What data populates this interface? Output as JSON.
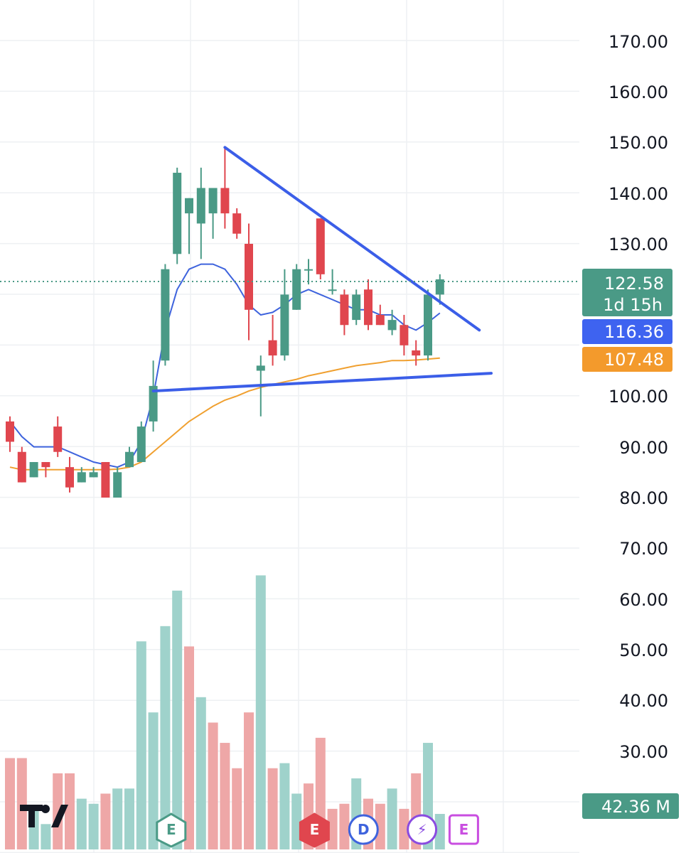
{
  "chart_data": {
    "type": "candlestick",
    "title": "",
    "xlabel": "",
    "ylabel": "",
    "price_axis": {
      "min": 70,
      "max": 175,
      "ticks": [
        "170.00",
        "160.00",
        "150.00",
        "140.00",
        "130.00",
        "100.00",
        "90.00",
        "80.00",
        "70.00"
      ]
    },
    "volume_axis": {
      "min": 0,
      "max": 100,
      "ticks": [
        "60.00",
        "50.00",
        "40.00",
        "30.00"
      ]
    },
    "grid": true,
    "colors": {
      "up": "#4a9a86",
      "down": "#e0464e",
      "up_volume": "#9fd2cb",
      "down_volume": "#eea7a7",
      "ma_fast": "#3e63dd",
      "ma_slow": "#f0a030",
      "trendline": "#3b5ee8",
      "last_price_tag": "#4a9a86",
      "ma_fast_tag": "#3e63f0",
      "ma_slow_tag": "#f39a2c",
      "volume_tag": "#4a9a86"
    },
    "candles": [
      {
        "o": 95,
        "h": 96,
        "l": 89,
        "c": 91
      },
      {
        "o": 89,
        "h": 90,
        "l": 83,
        "c": 83
      },
      {
        "o": 84,
        "h": 87,
        "l": 84,
        "c": 87
      },
      {
        "o": 87,
        "h": 87,
        "l": 84,
        "c": 86
      },
      {
        "o": 94,
        "h": 96,
        "l": 88,
        "c": 89
      },
      {
        "o": 86,
        "h": 88,
        "l": 81,
        "c": 82
      },
      {
        "o": 83,
        "h": 86,
        "l": 83,
        "c": 85
      },
      {
        "o": 84,
        "h": 86,
        "l": 84,
        "c": 85
      },
      {
        "o": 87,
        "h": 87,
        "l": 80,
        "c": 80
      },
      {
        "o": 80,
        "h": 86,
        "l": 80,
        "c": 85
      },
      {
        "o": 86,
        "h": 90,
        "l": 86,
        "c": 89
      },
      {
        "o": 87,
        "h": 95,
        "l": 87,
        "c": 94
      },
      {
        "o": 95,
        "h": 107,
        "l": 93,
        "c": 102
      },
      {
        "o": 107,
        "h": 126,
        "l": 106,
        "c": 125
      },
      {
        "o": 128,
        "h": 145,
        "l": 126,
        "c": 144
      },
      {
        "o": 136,
        "h": 139,
        "l": 128,
        "c": 139
      },
      {
        "o": 134,
        "h": 145,
        "l": 127,
        "c": 141
      },
      {
        "o": 136,
        "h": 141,
        "l": 131,
        "c": 141
      },
      {
        "o": 141,
        "h": 149,
        "l": 133,
        "c": 136
      },
      {
        "o": 136,
        "h": 137,
        "l": 131,
        "c": 132
      },
      {
        "o": 130,
        "h": 134,
        "l": 111,
        "c": 117
      },
      {
        "o": 105,
        "h": 108,
        "l": 96,
        "c": 106
      },
      {
        "o": 111,
        "h": 116,
        "l": 106,
        "c": 108
      },
      {
        "o": 108,
        "h": 125,
        "l": 107,
        "c": 120
      },
      {
        "o": 117,
        "h": 126,
        "l": 117,
        "c": 125
      },
      {
        "o": 125,
        "h": 127,
        "l": 122,
        "c": 125
      },
      {
        "o": 135,
        "h": 135,
        "l": 123,
        "c": 124
      },
      {
        "o": 121,
        "h": 125,
        "l": 120,
        "c": 121
      },
      {
        "o": 120,
        "h": 121,
        "l": 112,
        "c": 114
      },
      {
        "o": 115,
        "h": 121,
        "l": 114,
        "c": 120
      },
      {
        "o": 121,
        "h": 123,
        "l": 113,
        "c": 114
      },
      {
        "o": 116,
        "h": 118,
        "l": 114,
        "c": 114
      },
      {
        "o": 113,
        "h": 117,
        "l": 112,
        "c": 115
      },
      {
        "o": 114,
        "h": 116,
        "l": 108,
        "c": 110
      },
      {
        "o": 109,
        "h": 111,
        "l": 106,
        "c": 108
      },
      {
        "o": 108,
        "h": 121,
        "l": 107,
        "c": 120
      },
      {
        "o": 120,
        "h": 124,
        "l": 118,
        "c": 123
      }
    ],
    "volume": [
      {
        "v": 18,
        "up": false
      },
      {
        "v": 18,
        "up": false
      },
      {
        "v": 8,
        "up": true
      },
      {
        "v": 5,
        "up": true
      },
      {
        "v": 15,
        "up": false
      },
      {
        "v": 15,
        "up": false
      },
      {
        "v": 10,
        "up": true
      },
      {
        "v": 9,
        "up": true
      },
      {
        "v": 11,
        "up": false
      },
      {
        "v": 12,
        "up": true
      },
      {
        "v": 12,
        "up": true
      },
      {
        "v": 41,
        "up": true
      },
      {
        "v": 27,
        "up": true
      },
      {
        "v": 44,
        "up": true
      },
      {
        "v": 51,
        "up": true
      },
      {
        "v": 40,
        "up": false
      },
      {
        "v": 30,
        "up": true
      },
      {
        "v": 25,
        "up": false
      },
      {
        "v": 21,
        "up": false
      },
      {
        "v": 16,
        "up": false
      },
      {
        "v": 27,
        "up": false
      },
      {
        "v": 54,
        "up": true
      },
      {
        "v": 16,
        "up": false
      },
      {
        "v": 17,
        "up": true
      },
      {
        "v": 11,
        "up": true
      },
      {
        "v": 13,
        "up": false
      },
      {
        "v": 22,
        "up": false
      },
      {
        "v": 8,
        "up": false
      },
      {
        "v": 9,
        "up": false
      },
      {
        "v": 14,
        "up": true
      },
      {
        "v": 10,
        "up": false
      },
      {
        "v": 9,
        "up": false
      },
      {
        "v": 12,
        "up": true
      },
      {
        "v": 8,
        "up": false
      },
      {
        "v": 15,
        "up": false
      },
      {
        "v": 21,
        "up": true
      },
      {
        "v": 7,
        "up": true
      }
    ],
    "ma_fast": [
      95,
      92,
      90,
      90,
      90,
      89,
      88,
      87,
      86.5,
      86,
      87,
      91,
      100,
      113,
      121,
      125,
      126,
      126,
      125,
      122,
      118,
      116,
      116.5,
      118,
      120,
      121,
      120,
      119,
      118,
      117,
      117,
      116,
      116,
      114,
      113,
      114.5,
      116.36
    ],
    "ma_slow": [
      86,
      85.5,
      85.5,
      85.5,
      85.5,
      85.5,
      85.5,
      85.5,
      85.5,
      85.6,
      86,
      87,
      89,
      91,
      93,
      95,
      96.5,
      98,
      99.2,
      100,
      101,
      101.7,
      102.3,
      102.8,
      103.3,
      104,
      104.5,
      105,
      105.5,
      106,
      106.3,
      106.6,
      107,
      107,
      107.1,
      107.3,
      107.48
    ],
    "trendlines": [
      {
        "from": {
          "i": 18,
          "v": 149
        },
        "to": {
          "i": 39.3,
          "v": 113
        }
      },
      {
        "from": {
          "i": 12,
          "v": 101
        },
        "to": {
          "i": 40.3,
          "v": 104.5
        }
      }
    ],
    "price_tags": {
      "last_price": "122.58",
      "countdown": "1d 15h",
      "ma_fast": "116.36",
      "ma_slow": "107.48",
      "volume": "42.36 M"
    },
    "last_price_value": 122.58,
    "badges": [
      {
        "letter": "E",
        "i": 13.5,
        "style": "green"
      },
      {
        "letter": "E",
        "i": 25.5,
        "style": "red"
      },
      {
        "letter": "D",
        "i": 29.6,
        "style": "blue"
      },
      {
        "letter": "⚡",
        "i": 34.5,
        "style": "purple"
      },
      {
        "letter": "E",
        "i": 38,
        "style": "pink"
      }
    ]
  }
}
